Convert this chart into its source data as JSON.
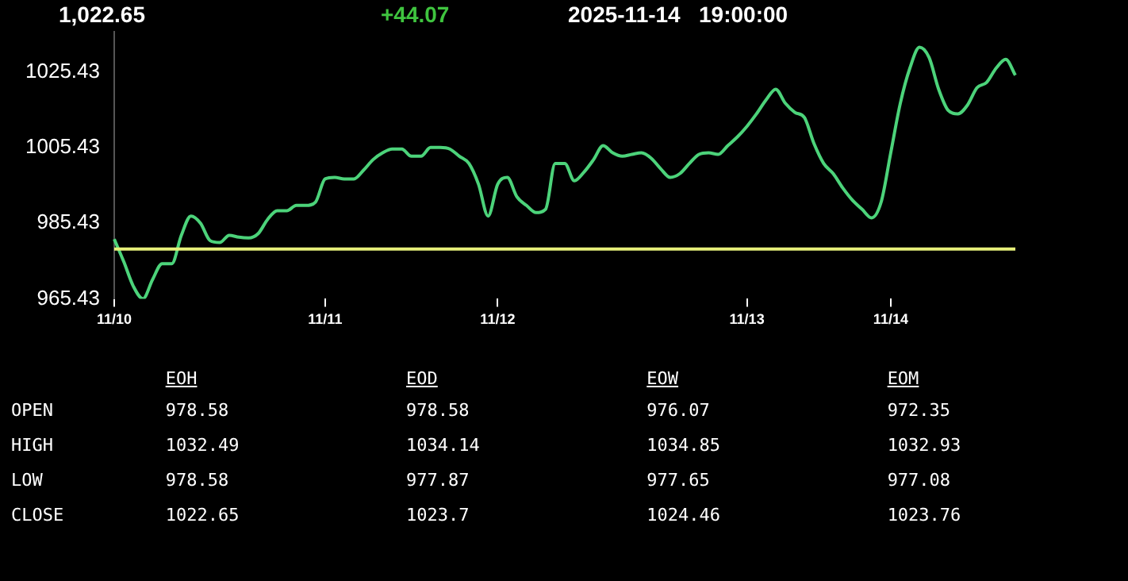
{
  "chart_data": {
    "type": "line",
    "categories": [
      "11/10",
      null,
      null,
      null,
      null,
      null,
      null,
      null,
      null,
      null,
      null,
      null,
      null,
      null,
      null,
      null,
      null,
      null,
      null,
      null,
      null,
      null,
      "11/11",
      null,
      null,
      null,
      null,
      null,
      null,
      null,
      null,
      null,
      null,
      null,
      null,
      null,
      null,
      null,
      null,
      null,
      "11/12",
      null,
      null,
      null,
      null,
      null,
      null,
      null,
      null,
      null,
      null,
      null,
      null,
      null,
      null,
      null,
      null,
      null,
      null,
      null,
      null,
      null,
      null,
      null,
      null,
      null,
      "11/13",
      null,
      null,
      null,
      null,
      null,
      null,
      null,
      null,
      null,
      null,
      null,
      null,
      null,
      null,
      "11/14",
      null,
      null,
      null,
      null,
      null,
      null,
      null,
      null,
      null,
      null,
      null,
      null,
      null
    ],
    "series": [
      {
        "color": "#4cd37a",
        "values": [
          981.2,
          975.2,
          968.7,
          965.43,
          970.5,
          974.7,
          974.7,
          982.2,
          987.3,
          985.4,
          980.8,
          980.3,
          982.2,
          981.7,
          981.5,
          982.6,
          986.4,
          988.7,
          988.7,
          990.1,
          990.1,
          991.0,
          997.1,
          997.5,
          997.1,
          997.1,
          999.4,
          1002.2,
          1004.0,
          1005.0,
          1005.0,
          1003.1,
          1003.1,
          1005.4,
          1005.4,
          1005.0,
          1003.1,
          1001.2,
          995.7,
          987.3,
          995.7,
          997.5,
          992.4,
          990.1,
          988.2,
          989.1,
          1001.2,
          1001.2,
          996.6,
          998.9,
          1002.2,
          1005.9,
          1004.0,
          1003.1,
          1003.6,
          1004.0,
          1002.6,
          999.8,
          997.5,
          998.5,
          1001.2,
          1003.6,
          1004.0,
          1003.6,
          1005.9,
          1008.2,
          1011.0,
          1014.3,
          1018.0,
          1020.8,
          1017.1,
          1014.7,
          1013.3,
          1006.4,
          1001.2,
          998.5,
          994.7,
          991.5,
          989.1,
          986.8,
          991.0,
          1004.0,
          1017.1,
          1026.4,
          1031.9,
          1029.2,
          1020.8,
          1015.2,
          1014.3,
          1016.6,
          1021.2,
          1022.6,
          1026.4,
          1028.7,
          1024.5
        ]
      }
    ],
    "ylim": [
      965.43,
      1036
    ],
    "yticks": [
      965.43,
      985.43,
      1005.43,
      1025.43
    ],
    "ref_lines": [
      {
        "axis": "y",
        "value": 978.58,
        "color": "#e6f07a"
      }
    ],
    "grid": false,
    "legend": false,
    "marker": "none",
    "line_style": "solid",
    "annotations": [
      "1,022.65",
      "+44.07",
      "2025-11-14   19:00:00",
      "EOH",
      "EOD",
      "EOW",
      "EOM",
      "OPEN",
      "978.58",
      "978.58",
      "976.07",
      "972.35",
      "HIGH",
      "1032.49",
      "1034.14",
      "1034.85",
      "1032.93",
      "LOW",
      "978.58",
      "977.87",
      "977.65",
      "977.08",
      "CLOSE",
      "1022.65",
      "1023.7",
      "1024.46",
      "1023.76"
    ]
  }
}
